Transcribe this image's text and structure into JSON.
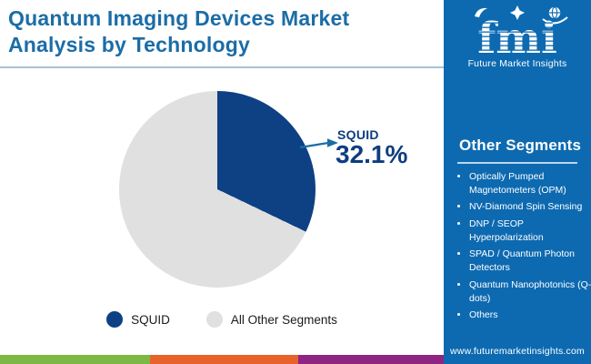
{
  "header": {
    "title": "Quantum Imaging Devices Market\nAnalysis by Technology"
  },
  "logo": {
    "brand": "fmi",
    "tagline": "Future Market Insights"
  },
  "chart_data": {
    "type": "pie",
    "title": "Quantum Imaging Devices Market Analysis by Technology",
    "labels": [
      "SQUID",
      "All Other Segments"
    ],
    "values": [
      32.1,
      67.9
    ],
    "colors": [
      "#0d4184",
      "#e0e0e0"
    ],
    "start_angle_deg": 0,
    "direction": "clockwise",
    "legend_position": "bottom",
    "callout": {
      "label": "SQUID",
      "value_text": "32.1%"
    }
  },
  "legend": {
    "items": [
      {
        "label": "SQUID",
        "color": "#0d4184"
      },
      {
        "label": "All Other Segments",
        "color": "#e0e0e0"
      }
    ]
  },
  "sidebar": {
    "heading": "Other Segments",
    "items": [
      "Optically Pumped Magnetometers (OPM)",
      "NV-Diamond Spin Sensing",
      "DNP / SEOP Hyperpolarization",
      "SPAD / Quantum Photon Detectors",
      "Quantum Nanophotonics (Q-dots)",
      "Others"
    ],
    "website": "www.futuremarketinsights.com"
  },
  "footer_strip": {
    "colors": [
      "#7cb843",
      "#e8632c",
      "#8e2583"
    ]
  },
  "theme": {
    "title_blue": "#1b6da7",
    "sidebar_blue": "#0d6ab1",
    "pie_navy": "#0d4184",
    "pie_gray": "#e0e0e0"
  }
}
